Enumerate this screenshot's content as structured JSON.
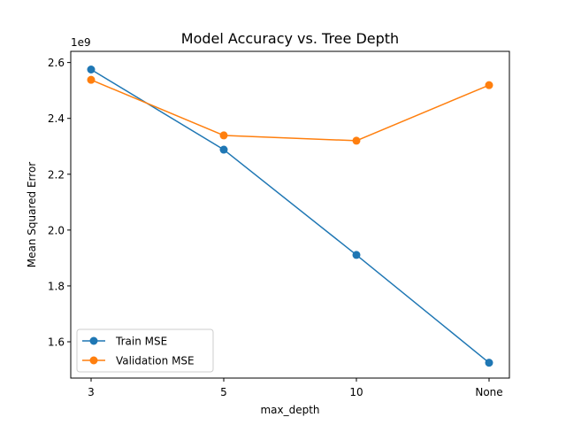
{
  "chart_data": {
    "type": "line",
    "title": "Model Accuracy vs. Tree Depth",
    "xlabel": "max_depth",
    "ylabel": "Mean Squared Error",
    "y_scale_label": "1e9",
    "categories": [
      "3",
      "5",
      "10",
      "None"
    ],
    "ylim": [
      1.47,
      2.64
    ],
    "yticks": [
      1.6,
      1.8,
      2.0,
      2.2,
      2.4,
      2.6
    ],
    "ytick_labels": [
      "1.6",
      "1.8",
      "2.0",
      "2.2",
      "2.4",
      "2.6"
    ],
    "grid": false,
    "legend_position": "lower-left",
    "series": [
      {
        "name": "Train MSE",
        "color": "#1f77b4",
        "values": [
          2.575,
          2.288,
          1.911,
          1.525
        ]
      },
      {
        "name": "Validation MSE",
        "color": "#ff7f0e",
        "values": [
          2.538,
          2.339,
          2.32,
          2.519
        ]
      }
    ]
  }
}
